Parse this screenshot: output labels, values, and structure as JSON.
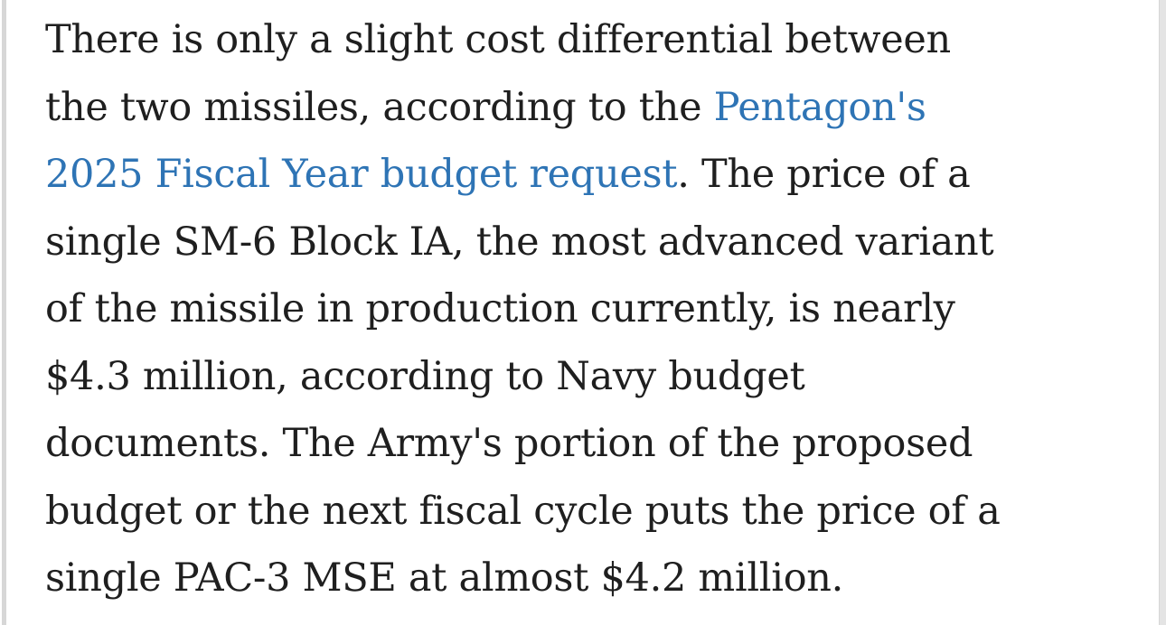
{
  "page": {
    "background": "#ffffff",
    "left_bar_color": "#d7d7d7",
    "right_gutter_color": "#e4e4e4",
    "text_color": "#1f1f1f",
    "link_color": "#2e74b5"
  },
  "article": {
    "link_text": "Pentagon's 2025 Fiscal Year budget request",
    "paragraph_text": "There is only a slight cost differential between the two missiles, according to the Pentagon's 2025 Fiscal Year budget request. The price of a single SM-6 Block IA, the most advanced variant of the missile in production currently, is nearly $4.3 million, according to Navy budget documents. The Army's portion of the proposed budget or the next fiscal cycle puts the price of a single PAC-3 MSE at almost $4.2 million.",
    "lines": [
      [
        {
          "t": "There is only a slight cost differential between",
          "link": false
        }
      ],
      [
        {
          "t": "the two missiles, according to the ",
          "link": false
        },
        {
          "t": "Pentagon's",
          "link": true
        }
      ],
      [
        {
          "t": "2025 Fiscal Year budget request",
          "link": true
        },
        {
          "t": ". The price of a",
          "link": false
        }
      ],
      [
        {
          "t": "single SM-6 Block IA, the most advanced variant",
          "link": false
        }
      ],
      [
        {
          "t": "of the missile in production currently, is nearly",
          "link": false
        }
      ],
      [
        {
          "t": "$4.3 million, according to Navy budget",
          "link": false
        }
      ],
      [
        {
          "t": "documents. The Army's portion of the proposed",
          "link": false
        }
      ],
      [
        {
          "t": "budget or the next fiscal cycle puts the price of a",
          "link": false
        }
      ],
      [
        {
          "t": "single PAC-3 MSE at almost $4.2 million.",
          "link": false
        }
      ]
    ]
  }
}
